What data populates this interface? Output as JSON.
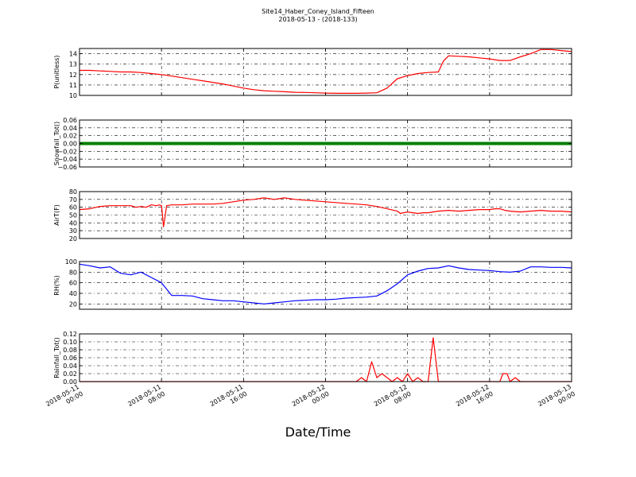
{
  "title": "Site14_Haber_Coney_Island_Fifteen",
  "subtitle": "2018-05-13 - (2018-133)",
  "xlabel": "Date/Time",
  "x_ticks": [
    {
      "value": 0,
      "line1": "2018-05-11",
      "line2": "00:00"
    },
    {
      "value": 8,
      "line1": "2018-05-11",
      "line2": "08:00"
    },
    {
      "value": 16,
      "line1": "2018-05-11",
      "line2": "16:00"
    },
    {
      "value": 24,
      "line1": "2018-05-12",
      "line2": "00:00"
    },
    {
      "value": 32,
      "line1": "2018-05-12",
      "line2": "08:00"
    },
    {
      "value": 40,
      "line1": "2018-05-12",
      "line2": "16:00"
    },
    {
      "value": 48,
      "line1": "2018-05-13",
      "line2": "00:00"
    }
  ],
  "chart_data": [
    {
      "type": "line",
      "ylabel": "P(unitless)",
      "ylim": [
        10,
        14.5
      ],
      "yticks": [
        10,
        11,
        12,
        13,
        14
      ],
      "ytick_labels": [
        "10",
        "11",
        "12",
        "13",
        "14"
      ],
      "color": "#ff0000",
      "grid": true,
      "x": [
        0,
        1,
        2,
        3,
        4,
        5,
        6,
        7,
        8,
        9,
        10,
        11,
        12,
        13,
        14,
        15,
        16,
        17,
        18,
        19,
        20,
        21,
        22,
        23,
        24,
        25,
        26,
        27,
        28,
        29,
        30,
        31,
        32,
        33,
        34,
        35,
        35.5,
        36,
        37,
        38,
        39,
        40,
        41,
        42,
        43,
        44,
        45,
        46,
        47,
        48
      ],
      "values": [
        12.4,
        12.4,
        12.35,
        12.3,
        12.25,
        12.25,
        12.2,
        12.1,
        12.0,
        11.85,
        11.7,
        11.55,
        11.4,
        11.25,
        11.1,
        10.9,
        10.7,
        10.55,
        10.45,
        10.4,
        10.35,
        10.3,
        10.28,
        10.25,
        10.22,
        10.2,
        10.2,
        10.2,
        10.22,
        10.25,
        10.7,
        11.6,
        11.9,
        12.1,
        12.2,
        12.25,
        13.3,
        13.8,
        13.75,
        13.7,
        13.6,
        13.5,
        13.35,
        13.35,
        13.7,
        14.0,
        14.4,
        14.4,
        14.3,
        14.2
      ]
    },
    {
      "type": "line",
      "ylabel": "Snowfall_Tot()",
      "ylim": [
        -0.06,
        0.06
      ],
      "yticks": [
        -0.06,
        -0.04,
        -0.02,
        0,
        0.02,
        0.04,
        0.06
      ],
      "ytick_labels": [
        "−0.06",
        "−0.04",
        "−0.02",
        "0.00",
        "0.02",
        "0.04",
        "0.06"
      ],
      "color": "#007f00",
      "line_width": 4,
      "grid": true,
      "x": [
        0,
        48
      ],
      "values": [
        0,
        0
      ]
    },
    {
      "type": "line",
      "ylabel": "AirT(F)",
      "ylim": [
        20,
        80
      ],
      "yticks": [
        20,
        30,
        40,
        50,
        60,
        70,
        80
      ],
      "ytick_labels": [
        "20",
        "30",
        "40",
        "50",
        "60",
        "70",
        "80"
      ],
      "color": "#ff0000",
      "grid": true,
      "x": [
        0,
        1,
        2,
        3,
        4,
        4.5,
        5,
        5.5,
        6,
        6.5,
        7,
        7.5,
        7.8,
        8.0,
        8.2,
        8.5,
        9,
        10,
        11,
        12,
        13,
        14,
        15,
        16,
        17,
        18,
        19,
        20,
        21,
        22,
        23,
        24,
        25,
        26,
        27,
        28,
        29,
        30,
        31,
        31.3,
        31.6,
        32,
        32.5,
        33,
        33.5,
        34,
        35,
        36,
        37,
        38,
        39,
        40,
        40.5,
        41,
        41.5,
        42,
        43,
        44,
        45,
        46,
        47,
        48
      ],
      "values": [
        57,
        58,
        61,
        62,
        62,
        62,
        62,
        60,
        61,
        60,
        63,
        62,
        63,
        62,
        35,
        62,
        63,
        63,
        64,
        64,
        64,
        65,
        67,
        69,
        70,
        72,
        70,
        72,
        70,
        69,
        68,
        67,
        66,
        65,
        64,
        63,
        61,
        58,
        55,
        52,
        53,
        54,
        53,
        52,
        53,
        53,
        55,
        56,
        55,
        56,
        57,
        57,
        58,
        58,
        56,
        55,
        54,
        55,
        56,
        55,
        55,
        54
      ]
    },
    {
      "type": "line",
      "ylabel": "RH(%)",
      "ylim": [
        10,
        100
      ],
      "yticks": [
        20,
        40,
        60,
        80,
        100
      ],
      "ytick_labels": [
        "20",
        "40",
        "60",
        "80",
        "100"
      ],
      "color": "#0000ff",
      "grid": true,
      "x": [
        0,
        1,
        2,
        3,
        4,
        5,
        6,
        7,
        8,
        9,
        10,
        11,
        12,
        13,
        14,
        15,
        16,
        17,
        18,
        19,
        20,
        21,
        22,
        23,
        24,
        25,
        26,
        27,
        28,
        29,
        30,
        31,
        32,
        33,
        34,
        35,
        36,
        37,
        38,
        39,
        40,
        41,
        42,
        43,
        44,
        45,
        46,
        47,
        48
      ],
      "values": [
        95,
        92,
        88,
        90,
        78,
        75,
        80,
        70,
        60,
        36,
        36,
        35,
        30,
        28,
        26,
        26,
        24,
        22,
        20,
        22,
        24,
        26,
        27,
        28,
        28,
        29,
        31,
        32,
        33,
        35,
        45,
        58,
        75,
        82,
        87,
        88,
        92,
        88,
        85,
        84,
        83,
        81,
        80,
        82,
        90,
        90,
        89,
        89,
        88
      ]
    },
    {
      "type": "line",
      "ylabel": "Rainfall_Tot()",
      "ylim": [
        0,
        0.12
      ],
      "yticks": [
        0,
        0.02,
        0.04,
        0.06,
        0.08,
        0.1,
        0.12
      ],
      "ytick_labels": [
        "0.00",
        "0.02",
        "0.04",
        "0.06",
        "0.08",
        "0.10",
        "0.12"
      ],
      "color": "#ff0000",
      "grid": true,
      "x": [
        0,
        27,
        27.5,
        28,
        28.5,
        29,
        29.5,
        30,
        30.5,
        31,
        31.5,
        32,
        32.5,
        33,
        33.5,
        34,
        34.5,
        35,
        35.5,
        36,
        41,
        41.3,
        41.7,
        42,
        42.5,
        43,
        43.5,
        48
      ],
      "values": [
        0,
        0,
        0.01,
        0,
        0.05,
        0.01,
        0.02,
        0.01,
        0,
        0.01,
        0,
        0.02,
        0,
        0.01,
        0,
        0,
        0.11,
        0,
        0,
        0,
        0,
        0.02,
        0.02,
        0,
        0.01,
        0,
        0,
        0
      ]
    }
  ]
}
